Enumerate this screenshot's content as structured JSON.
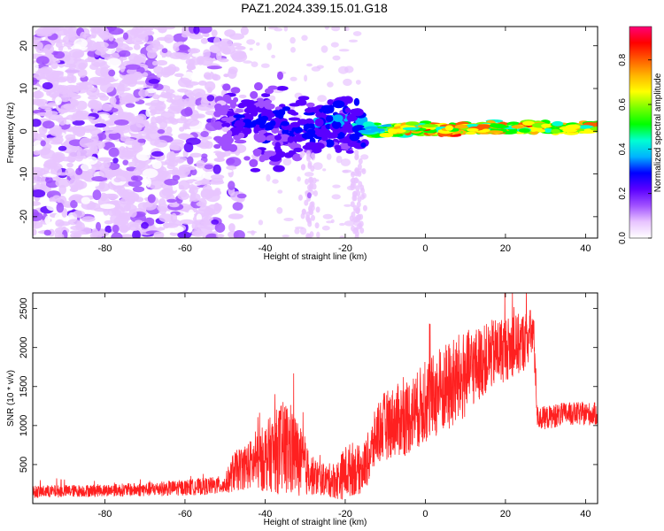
{
  "title": "PAZ1.2024.339.15.01.G18",
  "chart_data": [
    {
      "type": "heatmap",
      "title": "PAZ1.2024.339.15.01.G18",
      "xlabel": "Height of straight line (km)",
      "ylabel": "Frequency (Hz)",
      "xlim": [
        -98,
        43
      ],
      "ylim": [
        -25,
        24.5
      ],
      "xticks": [
        -80,
        -60,
        -40,
        -20,
        0,
        20,
        40
      ],
      "xtick_labels": [
        "-80",
        "-60",
        "-40",
        "-20",
        "0",
        "20",
        "40"
      ],
      "yticks": [
        -20,
        -10,
        0,
        10,
        20
      ],
      "ytick_labels": [
        "-20",
        "-10",
        "0",
        "10",
        "20"
      ],
      "colorbar": {
        "label": "Normalized spectral amplitude",
        "range": [
          0,
          0.95
        ],
        "ticks": [
          0,
          0.2,
          0.4,
          0.6,
          0.8
        ],
        "tick_labels": [
          "0.0",
          "0.2",
          "0.4",
          "0.6",
          "0.8"
        ],
        "colors": [
          "#ffffff",
          "#e8c4ff",
          "#a050ff",
          "#5a00ff",
          "#0000ff",
          "#00b4ff",
          "#00ffd2",
          "#00ff00",
          "#78ff00",
          "#ffff00",
          "#ffb400",
          "#ff5a00",
          "#ff0000",
          "#ff0078"
        ]
      },
      "ridge": {
        "description_points": [
          [
            -48,
            2
          ],
          [
            -40,
            1.5
          ],
          [
            -30,
            1.5
          ],
          [
            -20,
            1.5
          ],
          [
            -12,
            0
          ],
          [
            -5,
            0.5
          ],
          [
            0,
            0.7
          ],
          [
            5,
            0.2
          ],
          [
            10,
            0.5
          ],
          [
            20,
            0.8
          ],
          [
            43,
            0.8
          ]
        ],
        "amplitude_profile": [
          [
            -98,
            0.15
          ],
          [
            -50,
            0.2
          ],
          [
            -48,
            0.3
          ],
          [
            -30,
            0.35
          ],
          [
            -15,
            0.45
          ],
          [
            -12,
            0.6
          ],
          [
            0,
            0.85
          ],
          [
            10,
            0.8
          ],
          [
            20,
            0.82
          ],
          [
            43,
            0.8
          ]
        ]
      }
    },
    {
      "type": "line",
      "xlabel": "Height of straight line (km)",
      "ylabel": "SNR (10 * v/v)",
      "xlim": [
        -98,
        43
      ],
      "ylim": [
        0,
        2700
      ],
      "xticks": [
        -80,
        -60,
        -40,
        -20,
        0,
        20,
        40
      ],
      "xtick_labels": [
        "-80",
        "-60",
        "-40",
        "-20",
        "0",
        "20",
        "40"
      ],
      "yticks": [
        500,
        1000,
        1500,
        2000,
        2500
      ],
      "ytick_labels": [
        "500",
        "1000",
        "1500",
        "2000",
        "2500"
      ],
      "color": "#ff2020",
      "envelope": {
        "x": [
          -98,
          -90,
          -80,
          -70,
          -62,
          -55,
          -50,
          -48,
          -45,
          -42,
          -40,
          -38,
          -36,
          -34,
          -32,
          -30,
          -28,
          -25,
          -22,
          -20,
          -18,
          -16,
          -14,
          -12,
          -10,
          -8,
          -5,
          -2,
          0,
          3,
          6,
          9,
          12,
          15,
          18,
          21,
          24,
          26,
          27,
          28,
          30,
          35,
          40,
          43
        ],
        "mean": [
          150,
          160,
          170,
          180,
          200,
          220,
          240,
          400,
          480,
          520,
          600,
          650,
          700,
          700,
          600,
          450,
          350,
          300,
          300,
          400,
          450,
          420,
          600,
          900,
          1000,
          1050,
          1100,
          1200,
          1300,
          1400,
          1500,
          1600,
          1750,
          1850,
          1950,
          2000,
          2050,
          2150,
          2200,
          1100,
          1100,
          1150,
          1150,
          1150
        ],
        "amp": [
          80,
          80,
          80,
          90,
          100,
          110,
          120,
          250,
          300,
          350,
          450,
          500,
          600,
          650,
          500,
          350,
          250,
          200,
          250,
          350,
          350,
          300,
          350,
          400,
          450,
          450,
          500,
          500,
          550,
          550,
          600,
          600,
          500,
          450,
          450,
          400,
          400,
          350,
          300,
          150,
          150,
          150,
          150,
          150
        ]
      }
    }
  ]
}
